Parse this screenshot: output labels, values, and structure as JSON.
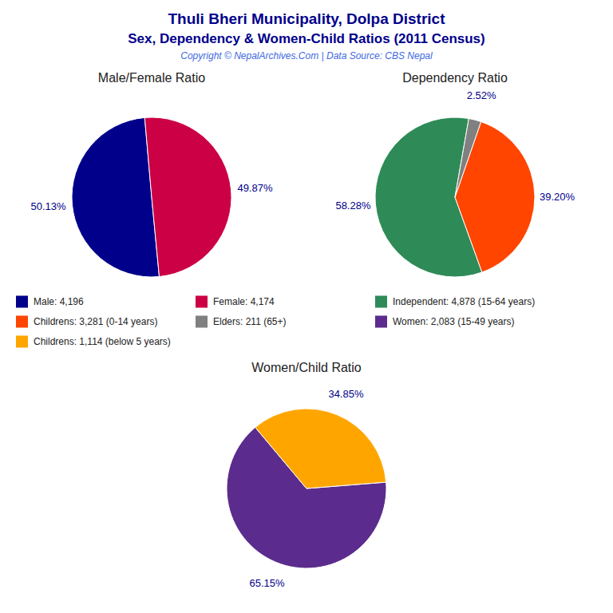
{
  "title": "Thuli Bheri Municipality, Dolpa District",
  "subtitle": "Sex, Dependency & Women-Child Ratios (2011 Census)",
  "annotations": [
    "Copyright © NepalArchives.Com | Data Source: CBS Nepal"
  ],
  "chart_data": [
    {
      "type": "pie",
      "title": "Male/Female Ratio",
      "categories": [
        "Male: 4,196",
        "Female: 4,174"
      ],
      "values": [
        50.13,
        49.87
      ],
      "value_labels": [
        "50.13%",
        "49.87%"
      ],
      "colors": [
        "#00008B",
        "#CC0044"
      ],
      "data_labels": true
    },
    {
      "type": "pie",
      "title": "Dependency Ratio",
      "categories": [
        "Independent: 4,878 (15-64 years)",
        "Childrens: 3,281 (0-14 years)",
        "Elders: 211 (65+)"
      ],
      "values": [
        58.28,
        39.2,
        2.52
      ],
      "value_labels": [
        "58.28%",
        "39.20%",
        "2.52%"
      ],
      "colors": [
        "#2E8B57",
        "#FF4500",
        "#808080"
      ],
      "data_labels": true
    },
    {
      "type": "pie",
      "title": "Women/Child Ratio",
      "categories": [
        "Women: 2,083 (15-49 years)",
        "Childrens: 1,114 (below 5 years)"
      ],
      "values": [
        65.15,
        34.85
      ],
      "value_labels": [
        "65.15%",
        "34.85%"
      ],
      "colors": [
        "#5B2C8D",
        "#FFA500"
      ],
      "data_labels": true
    }
  ]
}
